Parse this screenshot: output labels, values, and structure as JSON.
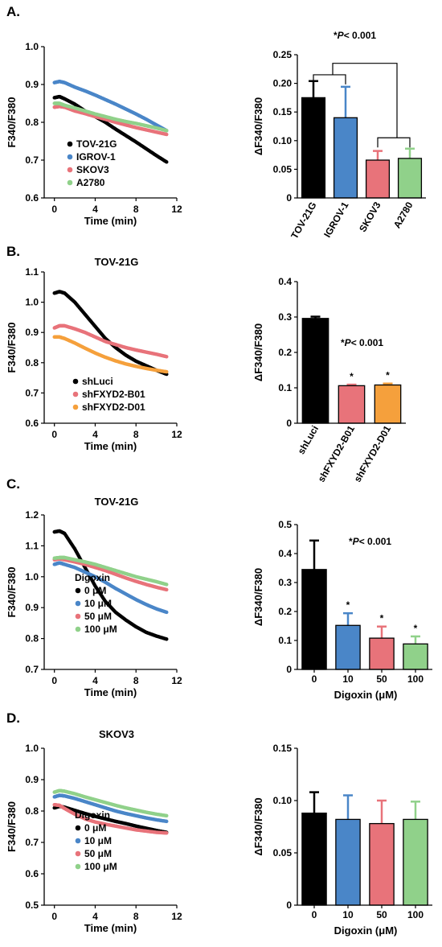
{
  "panels": [
    {
      "letter": "A.",
      "line": {
        "type": "line",
        "title": "",
        "xlabel": "Time (min)",
        "ylabel": "F340/F380",
        "xlim": [
          -1,
          12
        ],
        "ylim": [
          0.6,
          1.0
        ],
        "xticks": [
          0,
          4,
          8,
          12
        ],
        "yticks": [
          0.6,
          0.7,
          0.8,
          0.9,
          1.0
        ],
        "ytick_decimals": 1,
        "legend_title": "",
        "series": [
          {
            "name": "TOV-21G",
            "color": "#000000",
            "x": [
              0,
              0.5,
              1,
              2,
              3,
              4,
              5,
              6,
              7,
              8,
              9,
              10,
              11
            ],
            "y": [
              0.865,
              0.868,
              0.862,
              0.848,
              0.83,
              0.815,
              0.8,
              0.782,
              0.765,
              0.748,
              0.73,
              0.712,
              0.695
            ]
          },
          {
            "name": "IGROV-1",
            "color": "#4a86c8",
            "x": [
              0,
              0.5,
              1,
              2,
              3,
              4,
              5,
              6,
              7,
              8,
              9,
              10,
              11
            ],
            "y": [
              0.905,
              0.908,
              0.905,
              0.893,
              0.883,
              0.872,
              0.86,
              0.848,
              0.835,
              0.822,
              0.808,
              0.793,
              0.778
            ]
          },
          {
            "name": "SKOV3",
            "color": "#e8737a",
            "x": [
              0,
              0.5,
              1,
              2,
              3,
              4,
              5,
              6,
              7,
              8,
              9,
              10,
              11
            ],
            "y": [
              0.84,
              0.842,
              0.84,
              0.83,
              0.823,
              0.815,
              0.808,
              0.8,
              0.793,
              0.786,
              0.78,
              0.774,
              0.768
            ]
          },
          {
            "name": "A2780",
            "color": "#90d18a",
            "x": [
              0,
              0.5,
              1,
              2,
              3,
              4,
              5,
              6,
              7,
              8,
              9,
              10,
              11
            ],
            "y": [
              0.85,
              0.85,
              0.845,
              0.838,
              0.83,
              0.822,
              0.815,
              0.808,
              0.802,
              0.797,
              0.791,
              0.785,
              0.778
            ]
          }
        ]
      },
      "bar": {
        "type": "bar",
        "ylabel": "ΔF340/F380",
        "xlabel": "",
        "ylim": [
          0,
          0.25
        ],
        "yticks": [
          0,
          0.05,
          0.1,
          0.15,
          0.2,
          0.25
        ],
        "ytick_decimals": 2,
        "categories": [
          "TOV-21G",
          "IGROV-1",
          "SKOV3",
          "A2780"
        ],
        "rotate_categories": true,
        "values": [
          0.175,
          0.14,
          0.066,
          0.069
        ],
        "errors": [
          0.029,
          0.054,
          0.016,
          0.017
        ],
        "colors": [
          "#000000",
          "#4a86c8",
          "#e8737a",
          "#90d18a"
        ],
        "stars": [
          "",
          "",
          "",
          ""
        ],
        "annotation": {
          "prefix": "*",
          "italic": "P",
          "rest": "< 0.001"
        }
      }
    },
    {
      "letter": "B.",
      "line": {
        "type": "line",
        "title": "TOV-21G",
        "xlabel": "Time (min)",
        "ylabel": "F340/F380",
        "xlim": [
          -1,
          12
        ],
        "ylim": [
          0.6,
          1.1
        ],
        "xticks": [
          0,
          4,
          8,
          12
        ],
        "yticks": [
          0.6,
          0.7,
          0.8,
          0.9,
          1.0,
          1.1
        ],
        "ytick_decimals": 1,
        "legend_title": "",
        "series": [
          {
            "name": "shLuci",
            "color": "#000000",
            "x": [
              0,
              0.5,
              1,
              2,
              3,
              4,
              5,
              6,
              7,
              8,
              9,
              10,
              11
            ],
            "y": [
              1.03,
              1.035,
              1.03,
              1.0,
              0.96,
              0.92,
              0.88,
              0.85,
              0.825,
              0.805,
              0.79,
              0.775,
              0.762
            ]
          },
          {
            "name": "shFXYD2-B01",
            "color": "#e8737a",
            "x": [
              0,
              0.5,
              1,
              2,
              3,
              4,
              5,
              6,
              7,
              8,
              9,
              10,
              11
            ],
            "y": [
              0.915,
              0.922,
              0.922,
              0.912,
              0.9,
              0.885,
              0.87,
              0.86,
              0.85,
              0.842,
              0.835,
              0.828,
              0.82
            ]
          },
          {
            "name": "shFXYD2-D01",
            "color": "#f5a03c",
            "x": [
              0,
              0.5,
              1,
              2,
              3,
              4,
              5,
              6,
              7,
              8,
              9,
              10,
              11
            ],
            "y": [
              0.885,
              0.885,
              0.88,
              0.865,
              0.848,
              0.832,
              0.818,
              0.806,
              0.796,
              0.788,
              0.781,
              0.775,
              0.77
            ]
          }
        ]
      },
      "bar": {
        "type": "bar",
        "ylabel": "ΔF340/F380",
        "xlabel": "",
        "ylim": [
          0,
          0.4
        ],
        "yticks": [
          0,
          0.1,
          0.2,
          0.3,
          0.4
        ],
        "ytick_decimals": 1,
        "categories": [
          "shLuci",
          "shFXYD2-B01",
          "shFXYD2-D01"
        ],
        "rotate_categories": true,
        "values": [
          0.296,
          0.106,
          0.108
        ],
        "errors": [
          0.005,
          0.003,
          0.004
        ],
        "colors": [
          "#000000",
          "#e8737a",
          "#f5a03c"
        ],
        "stars": [
          "",
          "*",
          "*"
        ],
        "annotation": {
          "prefix": "*",
          "italic": "P",
          "rest": "< 0.001"
        }
      }
    },
    {
      "letter": "C.",
      "line": {
        "type": "line",
        "title": "TOV-21G",
        "xlabel": "Time (min)",
        "ylabel": "F340/F380",
        "xlim": [
          -1,
          12
        ],
        "ylim": [
          0.7,
          1.2
        ],
        "xticks": [
          0,
          4,
          8,
          12
        ],
        "yticks": [
          0.7,
          0.8,
          0.9,
          1.0,
          1.1,
          1.2
        ],
        "ytick_decimals": 1,
        "legend_title": "Digoxin",
        "series": [
          {
            "name": "0 μM",
            "color": "#000000",
            "x": [
              0,
              0.5,
              1,
              2,
              3,
              4,
              5,
              6,
              7,
              8,
              9,
              10,
              11
            ],
            "y": [
              1.145,
              1.148,
              1.14,
              1.09,
              1.03,
              0.97,
              0.92,
              0.885,
              0.86,
              0.838,
              0.82,
              0.808,
              0.798
            ]
          },
          {
            "name": "10 μM",
            "color": "#4a86c8",
            "x": [
              0,
              0.5,
              1,
              2,
              3,
              4,
              5,
              6,
              7,
              8,
              9,
              10,
              11
            ],
            "y": [
              1.04,
              1.045,
              1.04,
              1.03,
              1.015,
              1.0,
              0.982,
              0.962,
              0.944,
              0.926,
              0.91,
              0.896,
              0.885
            ]
          },
          {
            "name": "50 μM",
            "color": "#e8737a",
            "x": [
              0,
              0.5,
              1,
              2,
              3,
              4,
              5,
              6,
              7,
              8,
              9,
              10,
              11
            ],
            "y": [
              1.055,
              1.058,
              1.055,
              1.048,
              1.04,
              1.03,
              1.02,
              1.008,
              0.996,
              0.985,
              0.975,
              0.966,
              0.958
            ]
          },
          {
            "name": "100 μM",
            "color": "#90d18a",
            "x": [
              0,
              0.5,
              1,
              2,
              3,
              4,
              5,
              6,
              7,
              8,
              9,
              10,
              11
            ],
            "y": [
              1.06,
              1.062,
              1.062,
              1.055,
              1.048,
              1.04,
              1.03,
              1.02,
              1.01,
              1.0,
              0.992,
              0.984,
              0.975
            ]
          }
        ]
      },
      "bar": {
        "type": "bar",
        "ylabel": "ΔF340/F380",
        "xlabel": "Digoxin (μM)",
        "ylim": [
          0,
          0.5
        ],
        "yticks": [
          0,
          0.1,
          0.2,
          0.3,
          0.4,
          0.5
        ],
        "ytick_decimals": 1,
        "categories": [
          "0",
          "10",
          "50",
          "100"
        ],
        "rotate_categories": false,
        "values": [
          0.345,
          0.152,
          0.108,
          0.088
        ],
        "errors": [
          0.1,
          0.042,
          0.04,
          0.026
        ],
        "colors": [
          "#000000",
          "#4a86c8",
          "#e8737a",
          "#90d18a"
        ],
        "stars": [
          "",
          "*",
          "*",
          "*"
        ],
        "annotation": {
          "prefix": "*",
          "italic": "P",
          "rest": "< 0.001"
        }
      }
    },
    {
      "letter": "D.",
      "line": {
        "type": "line",
        "title": "SKOV3",
        "xlabel": "Time (min)",
        "ylabel": "F340/F380",
        "xlim": [
          -1,
          12
        ],
        "ylim": [
          0.5,
          1.0
        ],
        "xticks": [
          0,
          4,
          8,
          12
        ],
        "yticks": [
          0.5,
          0.6,
          0.7,
          0.8,
          0.9,
          1.0
        ],
        "ytick_decimals": 1,
        "legend_title": "Digoxin",
        "series": [
          {
            "name": "0 μM",
            "color": "#000000",
            "x": [
              0,
              0.5,
              1,
              2,
              3,
              4,
              5,
              6,
              7,
              8,
              9,
              10,
              11
            ],
            "y": [
              0.81,
              0.815,
              0.812,
              0.802,
              0.792,
              0.783,
              0.775,
              0.767,
              0.76,
              0.752,
              0.745,
              0.738,
              0.732
            ]
          },
          {
            "name": "10 μM",
            "color": "#4a86c8",
            "x": [
              0,
              0.5,
              1,
              2,
              3,
              4,
              5,
              6,
              7,
              8,
              9,
              10,
              11
            ],
            "y": [
              0.845,
              0.85,
              0.848,
              0.84,
              0.83,
              0.82,
              0.81,
              0.8,
              0.792,
              0.785,
              0.778,
              0.772,
              0.767
            ]
          },
          {
            "name": "50 μM",
            "color": "#e8737a",
            "x": [
              0,
              0.5,
              1,
              2,
              3,
              4,
              5,
              6,
              7,
              8,
              9,
              10,
              11
            ],
            "y": [
              0.82,
              0.818,
              0.808,
              0.79,
              0.775,
              0.765,
              0.758,
              0.752,
              0.746,
              0.74,
              0.736,
              0.732,
              0.73
            ]
          },
          {
            "name": "100 μM",
            "color": "#90d18a",
            "x": [
              0,
              0.5,
              1,
              2,
              3,
              4,
              5,
              6,
              7,
              8,
              9,
              10,
              11
            ],
            "y": [
              0.86,
              0.865,
              0.863,
              0.855,
              0.845,
              0.836,
              0.827,
              0.818,
              0.81,
              0.803,
              0.796,
              0.79,
              0.785
            ]
          }
        ]
      },
      "bar": {
        "type": "bar",
        "ylabel": "ΔF340/F380",
        "xlabel": "Digoxin (μM)",
        "ylim": [
          0,
          0.15
        ],
        "yticks": [
          0,
          0.05,
          0.1,
          0.15
        ],
        "ytick_decimals": 2,
        "categories": [
          "0",
          "10",
          "50",
          "100"
        ],
        "rotate_categories": false,
        "values": [
          0.088,
          0.082,
          0.078,
          0.082
        ],
        "errors": [
          0.02,
          0.023,
          0.022,
          0.017
        ],
        "colors": [
          "#000000",
          "#4a86c8",
          "#e8737a",
          "#90d18a"
        ],
        "stars": [
          "",
          "",
          "",
          ""
        ],
        "annotation": null
      }
    }
  ]
}
